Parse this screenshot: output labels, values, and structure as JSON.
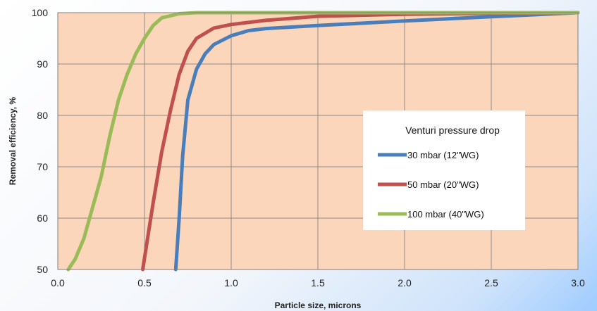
{
  "chart_data": {
    "type": "line",
    "xlabel": "Particle size, microns",
    "ylabel": "Removal efficiency, %",
    "xlim": [
      0.0,
      3.0
    ],
    "ylim": [
      50,
      100
    ],
    "xticks": [
      "0.0",
      "0.5",
      "1.0",
      "1.5",
      "2.0",
      "2.5",
      "3.0"
    ],
    "yticks": [
      "50",
      "60",
      "70",
      "80",
      "90",
      "100"
    ],
    "grid": true,
    "plot_background": "#fcd6bb",
    "legend": {
      "title": "Venturi pressure drop",
      "placement": "center-right"
    },
    "series": [
      {
        "name": "30 mbar (12\"WG)",
        "color": "#4a7ebb",
        "points": [
          [
            0.68,
            50
          ],
          [
            0.7,
            60
          ],
          [
            0.72,
            72
          ],
          [
            0.75,
            83
          ],
          [
            0.8,
            89
          ],
          [
            0.85,
            92
          ],
          [
            0.9,
            93.8
          ],
          [
            1.0,
            95.5
          ],
          [
            1.1,
            96.5
          ],
          [
            1.2,
            96.9
          ],
          [
            1.5,
            97.5
          ],
          [
            2.0,
            98.4
          ],
          [
            2.5,
            99.2
          ],
          [
            3.0,
            100
          ]
        ]
      },
      {
        "name": "50 mbar (20\"WG)",
        "color": "#c0504d",
        "points": [
          [
            0.49,
            50
          ],
          [
            0.55,
            63
          ],
          [
            0.6,
            73
          ],
          [
            0.65,
            81
          ],
          [
            0.7,
            88
          ],
          [
            0.75,
            92.5
          ],
          [
            0.8,
            95
          ],
          [
            0.9,
            97
          ],
          [
            1.0,
            97.7
          ],
          [
            1.2,
            98.5
          ],
          [
            1.5,
            99.3
          ],
          [
            2.0,
            99.7
          ],
          [
            3.0,
            100
          ]
        ]
      },
      {
        "name": "100 mbar (40\"WG)",
        "color": "#9bbb59",
        "points": [
          [
            0.06,
            50
          ],
          [
            0.1,
            52
          ],
          [
            0.15,
            56
          ],
          [
            0.2,
            62
          ],
          [
            0.25,
            68
          ],
          [
            0.3,
            76
          ],
          [
            0.35,
            83
          ],
          [
            0.4,
            88
          ],
          [
            0.45,
            92
          ],
          [
            0.5,
            95
          ],
          [
            0.55,
            97.5
          ],
          [
            0.6,
            99
          ],
          [
            0.7,
            99.8
          ],
          [
            0.8,
            100
          ],
          [
            3.0,
            100
          ]
        ]
      }
    ]
  }
}
